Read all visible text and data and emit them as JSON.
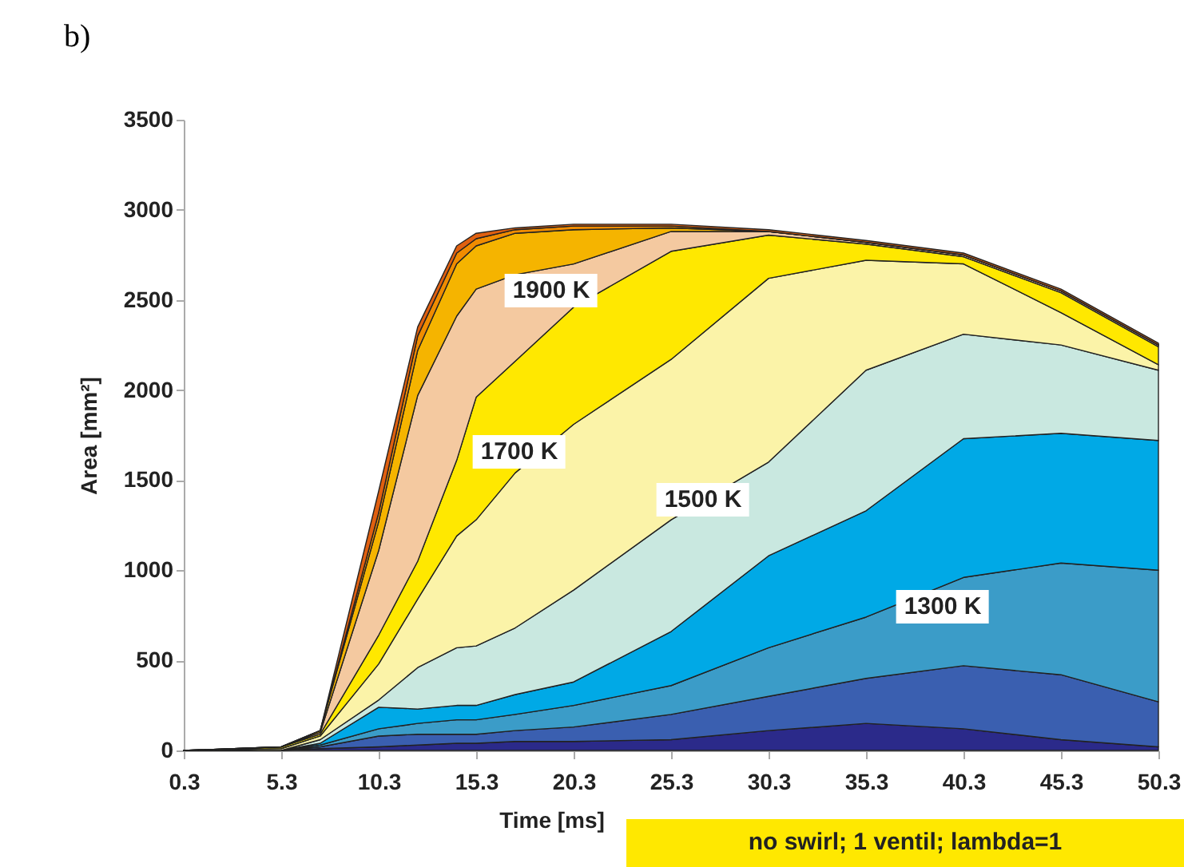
{
  "chart_data": {
    "type": "area",
    "stacked": true,
    "xlabel": "Time [ms]",
    "ylabel": "Area [mm²]",
    "x": [
      0.3,
      5.3,
      7.3,
      10.3,
      12.3,
      14.3,
      15.3,
      17.3,
      20.3,
      25.3,
      30.3,
      35.3,
      40.3,
      45.3,
      50.3
    ],
    "xlim": [
      0.3,
      50.3
    ],
    "xticks": [
      0.3,
      5.3,
      10.3,
      15.3,
      20.3,
      25.3,
      30.3,
      35.3,
      40.3,
      45.3,
      50.3
    ],
    "ylim": [
      0,
      3500
    ],
    "yticks": [
      0,
      500,
      1000,
      1500,
      2000,
      2500,
      3000,
      3500
    ],
    "grid": false,
    "legend": false,
    "series": [
      {
        "color": "#2b2a8a",
        "values": [
          0,
          0,
          10,
          20,
          30,
          40,
          40,
          50,
          50,
          60,
          110,
          150,
          120,
          60,
          20
        ]
      },
      {
        "color": "#3a5fb0",
        "values": [
          0,
          0,
          10,
          60,
          60,
          50,
          50,
          60,
          80,
          140,
          190,
          250,
          350,
          360,
          250
        ]
      },
      {
        "color": "#3b9cc8",
        "values": [
          0,
          0,
          10,
          40,
          60,
          80,
          80,
          90,
          120,
          160,
          270,
          340,
          490,
          620,
          730
        ]
      },
      {
        "color": "#00a9e6",
        "values": [
          0,
          0,
          10,
          120,
          80,
          80,
          80,
          110,
          130,
          300,
          510,
          590,
          770,
          720,
          720
        ]
      },
      {
        "color": "#c9e8e0",
        "values": [
          0,
          0,
          20,
          40,
          230,
          320,
          330,
          370,
          510,
          620,
          520,
          780,
          580,
          490,
          390
        ]
      },
      {
        "color": "#fbf3a8",
        "values": [
          0,
          10,
          20,
          200,
          380,
          620,
          700,
          860,
          920,
          890,
          1020,
          610,
          390,
          180,
          30
        ]
      },
      {
        "color": "#ffe800",
        "values": [
          0,
          10,
          10,
          160,
          210,
          420,
          680,
          620,
          650,
          600,
          240,
          90,
          40,
          110,
          100
        ]
      },
      {
        "color": "#f4c9a0",
        "values": [
          0,
          0,
          10,
          470,
          920,
          800,
          600,
          480,
          240,
          110,
          20,
          10,
          10,
          10,
          10
        ]
      },
      {
        "color": "#f5b400",
        "values": [
          0,
          0,
          10,
          160,
          250,
          290,
          240,
          230,
          190,
          20,
          0,
          0,
          0,
          0,
          0
        ]
      },
      {
        "color": "#f08c00",
        "values": [
          0,
          0,
          0,
          50,
          80,
          60,
          40,
          20,
          20,
          10,
          0,
          0,
          0,
          0,
          0
        ]
      },
      {
        "color": "#e06010",
        "values": [
          0,
          0,
          0,
          120,
          50,
          40,
          30,
          10,
          10,
          10,
          10,
          10,
          10,
          10,
          10
        ]
      }
    ],
    "annotations": [
      "1900 K",
      "1700 K",
      "1500 K",
      "1300 K",
      "b)",
      "no swirl; 1 ventil; lambda=1"
    ]
  }
}
